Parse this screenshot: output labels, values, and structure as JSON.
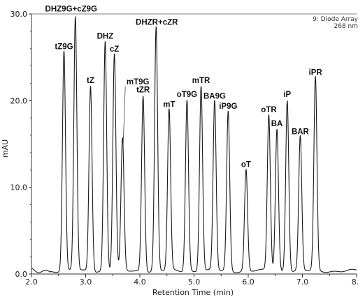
{
  "chart_data": {
    "type": "line",
    "xlabel": "Retention Time (min)",
    "ylabel": "mAU",
    "xlim": [
      2.0,
      8.0
    ],
    "ylim": [
      0.0,
      30.0
    ],
    "x_ticks": [
      "2.0",
      "2.5",
      "3.0",
      "3.5",
      "4.0",
      "4.5",
      "5.0",
      "5.5",
      "6.0",
      "6.5",
      "7.0",
      "7.5",
      "8."
    ],
    "y_ticks": [
      "0.0",
      "10.0",
      "20.0",
      "30.0"
    ],
    "annotation": [
      "9: Diode Array",
      "268 nm"
    ],
    "peaks": [
      {
        "name": "tZ9G",
        "rt": 2.6,
        "height": 25.3
      },
      {
        "name": "DHZ9G+cZ9G",
        "rt": 2.81,
        "height": 29.3
      },
      {
        "name": "tZ",
        "rt": 3.09,
        "height": 21.4
      },
      {
        "name": "DHZ",
        "rt": 3.36,
        "height": 26.5
      },
      {
        "name": "cZ",
        "rt": 3.53,
        "height": 25.0
      },
      {
        "name": "mT9G",
        "rt": 3.68,
        "height": 15.2
      },
      {
        "name": "tZR",
        "rt": 4.06,
        "height": 20.3
      },
      {
        "name": "DHZR+cZR",
        "rt": 4.3,
        "height": 28.1
      },
      {
        "name": "mT",
        "rt": 4.54,
        "height": 18.6
      },
      {
        "name": "oT9G",
        "rt": 4.87,
        "height": 19.8
      },
      {
        "name": "mTR",
        "rt": 5.13,
        "height": 21.4
      },
      {
        "name": "BA9G",
        "rt": 5.38,
        "height": 19.6
      },
      {
        "name": "iP9G",
        "rt": 5.63,
        "height": 18.4
      },
      {
        "name": "oT",
        "rt": 5.96,
        "height": 11.7
      },
      {
        "name": "oTR",
        "rt": 6.38,
        "height": 18.0
      },
      {
        "name": "BA",
        "rt": 6.53,
        "height": 16.4
      },
      {
        "name": "iP",
        "rt": 6.72,
        "height": 19.8
      },
      {
        "name": "BAR",
        "rt": 6.96,
        "height": 15.5
      },
      {
        "name": "iPR",
        "rt": 7.24,
        "height": 22.3
      }
    ]
  }
}
